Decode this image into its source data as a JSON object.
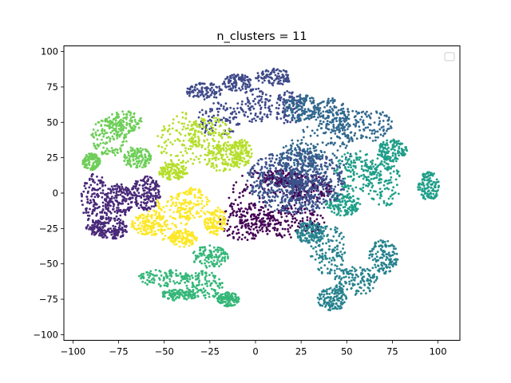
{
  "chart_data": {
    "type": "scatter",
    "title": "n_clusters = 11",
    "xlabel": "",
    "ylabel": "",
    "xlim": [
      -105,
      112
    ],
    "ylim": [
      -104,
      104
    ],
    "xticks": [
      -100,
      -75,
      -50,
      -25,
      0,
      25,
      50,
      75,
      100
    ],
    "yticks": [
      -100,
      -75,
      -50,
      -25,
      0,
      25,
      50,
      75,
      100
    ],
    "legend": {
      "placement": "top-right",
      "entries": []
    },
    "grid": false,
    "marker_size": 1.4,
    "clusters": [
      {
        "id": 0,
        "color": "#440154",
        "points_approx": 700,
        "regions": [
          {
            "cx": 5,
            "cy": -5,
            "rx": 20,
            "ry": 22
          },
          {
            "cx": -5,
            "cy": -20,
            "rx": 15,
            "ry": 14
          },
          {
            "cx": 20,
            "cy": -20,
            "rx": 18,
            "ry": 12
          },
          {
            "cx": 30,
            "cy": 3,
            "rx": 12,
            "ry": 10
          },
          {
            "cx": 15,
            "cy": 10,
            "rx": 12,
            "ry": 6
          }
        ]
      },
      {
        "id": 1,
        "color": "#482878",
        "points_approx": 650,
        "regions": [
          {
            "cx": -88,
            "cy": -8,
            "rx": 8,
            "ry": 22
          },
          {
            "cx": -75,
            "cy": -5,
            "rx": 8,
            "ry": 12
          },
          {
            "cx": -60,
            "cy": 0,
            "rx": 8,
            "ry": 12
          },
          {
            "cx": -80,
            "cy": -25,
            "rx": 10,
            "ry": 8
          }
        ]
      },
      {
        "id": 2,
        "color": "#3e4989",
        "points_approx": 600,
        "regions": [
          {
            "cx": -20,
            "cy": 52,
            "rx": 12,
            "ry": 12
          },
          {
            "cx": -28,
            "cy": 72,
            "rx": 10,
            "ry": 6
          },
          {
            "cx": -10,
            "cy": 78,
            "rx": 8,
            "ry": 6
          },
          {
            "cx": 0,
            "cy": 62,
            "rx": 10,
            "ry": 12
          },
          {
            "cx": 10,
            "cy": 82,
            "rx": 10,
            "ry": 6
          },
          {
            "cx": 18,
            "cy": 60,
            "rx": 8,
            "ry": 12
          }
        ]
      },
      {
        "id": 3,
        "color": "#31688e",
        "points_approx": 650,
        "regions": [
          {
            "cx": 38,
            "cy": 38,
            "rx": 18,
            "ry": 24
          },
          {
            "cx": 25,
            "cy": 60,
            "rx": 10,
            "ry": 10
          },
          {
            "cx": 42,
            "cy": 55,
            "rx": 10,
            "ry": 12
          },
          {
            "cx": 60,
            "cy": 48,
            "rx": 15,
            "ry": 12
          },
          {
            "cx": 25,
            "cy": 25,
            "rx": 12,
            "ry": 12
          }
        ]
      },
      {
        "id": 4,
        "color": "#26828e",
        "points_approx": 650,
        "regions": [
          {
            "cx": 40,
            "cy": -40,
            "rx": 10,
            "ry": 18
          },
          {
            "cx": 55,
            "cy": -62,
            "rx": 12,
            "ry": 10
          },
          {
            "cx": 70,
            "cy": -45,
            "rx": 8,
            "ry": 12
          },
          {
            "cx": 42,
            "cy": -75,
            "rx": 8,
            "ry": 8
          },
          {
            "cx": 30,
            "cy": -28,
            "rx": 8,
            "ry": 8
          }
        ]
      },
      {
        "id": 5,
        "color": "#1f9e89",
        "points_approx": 650,
        "regions": [
          {
            "cx": 55,
            "cy": 15,
            "rx": 12,
            "ry": 15
          },
          {
            "cx": 70,
            "cy": 10,
            "rx": 10,
            "ry": 20
          },
          {
            "cx": 48,
            "cy": -8,
            "rx": 10,
            "ry": 8
          },
          {
            "cx": 75,
            "cy": 30,
            "rx": 8,
            "ry": 8
          },
          {
            "cx": 95,
            "cy": 5,
            "rx": 6,
            "ry": 10
          }
        ]
      },
      {
        "id": 6,
        "color": "#35b779",
        "points_approx": 550,
        "regions": [
          {
            "cx": -50,
            "cy": -60,
            "rx": 15,
            "ry": 6
          },
          {
            "cx": -28,
            "cy": -65,
            "rx": 10,
            "ry": 10
          },
          {
            "cx": -25,
            "cy": -45,
            "rx": 10,
            "ry": 8
          },
          {
            "cx": -42,
            "cy": -72,
            "rx": 10,
            "ry": 4
          },
          {
            "cx": -15,
            "cy": -75,
            "rx": 6,
            "ry": 5
          }
        ]
      },
      {
        "id": 7,
        "color": "#6ece58",
        "points_approx": 500,
        "regions": [
          {
            "cx": -80,
            "cy": 40,
            "rx": 10,
            "ry": 14
          },
          {
            "cx": -72,
            "cy": 50,
            "rx": 10,
            "ry": 8
          },
          {
            "cx": -65,
            "cy": 25,
            "rx": 8,
            "ry": 8
          },
          {
            "cx": -90,
            "cy": 22,
            "rx": 5,
            "ry": 6
          }
        ]
      },
      {
        "id": 8,
        "color": "#b5de2b",
        "points_approx": 600,
        "regions": [
          {
            "cx": -40,
            "cy": 35,
            "rx": 14,
            "ry": 22
          },
          {
            "cx": -25,
            "cy": 42,
            "rx": 12,
            "ry": 12
          },
          {
            "cx": -18,
            "cy": 25,
            "rx": 10,
            "ry": 10
          },
          {
            "cx": -8,
            "cy": 28,
            "rx": 6,
            "ry": 10
          },
          {
            "cx": -45,
            "cy": 15,
            "rx": 8,
            "ry": 6
          }
        ]
      },
      {
        "id": 9,
        "color": "#fde725",
        "points_approx": 550,
        "regions": [
          {
            "cx": -48,
            "cy": -18,
            "rx": 12,
            "ry": 16
          },
          {
            "cx": -35,
            "cy": -8,
            "rx": 10,
            "ry": 12
          },
          {
            "cx": -58,
            "cy": -22,
            "rx": 10,
            "ry": 8
          },
          {
            "cx": -22,
            "cy": -20,
            "rx": 6,
            "ry": 10
          },
          {
            "cx": -40,
            "cy": -32,
            "rx": 8,
            "ry": 6
          }
        ]
      },
      {
        "id": 10,
        "color": "#3b528b",
        "points_approx": 700,
        "regions": [
          {
            "cx": 22,
            "cy": 8,
            "rx": 10,
            "ry": 6,
            "dense": true
          }
        ]
      }
    ]
  }
}
